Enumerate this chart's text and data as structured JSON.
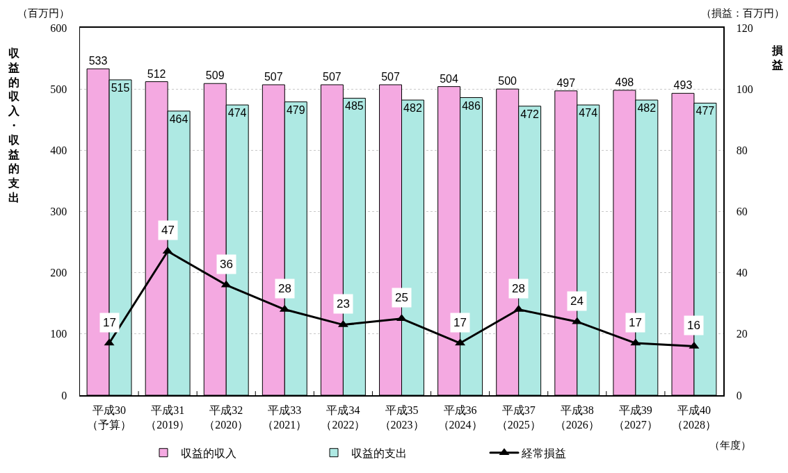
{
  "chart_data": {
    "type": "bar",
    "categories": [
      "平成30\n（予算）",
      "平成31\n（2019）",
      "平成32\n（2020）",
      "平成33\n（2021）",
      "平成34\n（2022）",
      "平成35\n（2023）",
      "平成36\n（2024）",
      "平成37\n（2025）",
      "平成38\n（2026）",
      "平成39\n（2027）",
      "平成40\n（2028）"
    ],
    "series": [
      {
        "name": "収益的収入",
        "color": "#f4a9e1",
        "values": [
          533,
          512,
          509,
          507,
          507,
          507,
          504,
          500,
          497,
          498,
          493
        ]
      },
      {
        "name": "収益的支出",
        "color": "#aee9e3",
        "values": [
          515,
          464,
          474,
          479,
          485,
          482,
          486,
          472,
          474,
          482,
          477
        ]
      },
      {
        "name": "経常損益",
        "type": "line",
        "axis": "y2",
        "color": "#000000",
        "values": [
          17,
          47,
          36,
          28,
          23,
          25,
          17,
          28,
          24,
          17,
          16
        ]
      }
    ],
    "ylabel": "収益的収入・収益的支出",
    "y2label": "損益",
    "ylim": [
      0,
      600
    ],
    "yticks": [
      0,
      100,
      200,
      300,
      400,
      500,
      600
    ],
    "y2lim": [
      0,
      120
    ],
    "y2ticks": [
      0,
      20,
      40,
      60,
      80,
      100,
      120
    ],
    "annotations": [
      "（百万円）",
      "（損益：百万円）",
      "（年度）"
    ],
    "data_labels": true,
    "grid": "y",
    "legend": "bottom",
    "marker": "triangle",
    "line_style": "solid"
  }
}
